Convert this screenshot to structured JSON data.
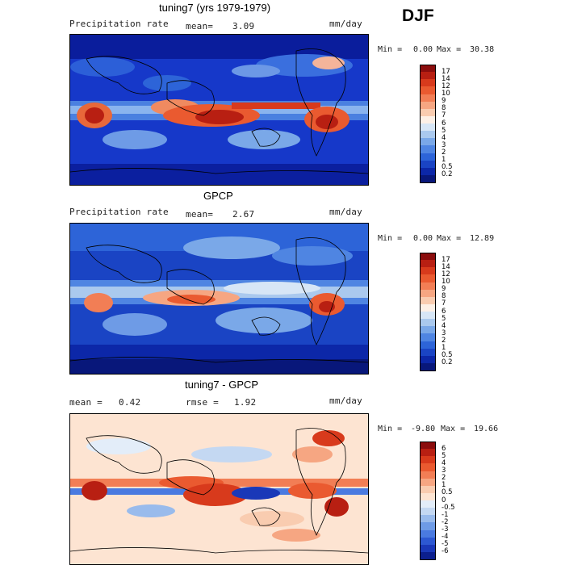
{
  "season": "DJF",
  "panels": [
    {
      "title": "tuning7 (yrs 1979-1979)",
      "left_label": "Precipitation rate",
      "stat1_label": "mean=",
      "stat1_value": "3.09",
      "stat2_label": "",
      "stat2_value": "",
      "units": "mm/day",
      "min_label": "Min =",
      "min_value": "0.00",
      "max_label": "Max =",
      "max_value": "30.38",
      "kind": "model"
    },
    {
      "title": "GPCP",
      "left_label": "Precipitation rate",
      "stat1_label": "mean=",
      "stat1_value": "2.67",
      "stat2_label": "",
      "stat2_value": "",
      "units": "mm/day",
      "min_label": "Min =",
      "min_value": "0.00",
      "max_label": "Max =",
      "max_value": "12.89",
      "kind": "obs"
    },
    {
      "title": "tuning7 - GPCP",
      "left_label": "",
      "stat1_label": "mean =",
      "stat1_value": "0.42",
      "stat2_label": "rmse =",
      "stat2_value": "1.92",
      "units": "mm/day",
      "min_label": "Min =",
      "min_value": "-9.80",
      "max_label": "Max =",
      "max_value": "19.66",
      "kind": "diff"
    }
  ],
  "colorbars": {
    "precip": {
      "labels": [
        "17",
        "14",
        "12",
        "10",
        "9",
        "8",
        "7",
        "6",
        "5",
        "4",
        "3",
        "2",
        "1",
        "0.5",
        "0.2"
      ],
      "colors": [
        "#8b0d0d",
        "#b81f12",
        "#d83a1c",
        "#ea5a30",
        "#f27e55",
        "#f6a682",
        "#f9ccb0",
        "#fdf0e6",
        "#d7e6f6",
        "#aac9ee",
        "#7aa8e8",
        "#4f85e2",
        "#2d64d8",
        "#1a44c4",
        "#0c27a8",
        "#08177a"
      ]
    },
    "diff": {
      "labels": [
        "6",
        "5",
        "4",
        "3",
        "2",
        "1",
        "0.5",
        "0",
        "-0.5",
        "-1",
        "-2",
        "-3",
        "-4",
        "-5",
        "-6"
      ],
      "colors": [
        "#8b0d0d",
        "#b81f12",
        "#d83a1c",
        "#ea5a30",
        "#f27e55",
        "#f6a682",
        "#f9ccb0",
        "#fde4d2",
        "#e3edf9",
        "#c4d8f2",
        "#99bbec",
        "#6e9be6",
        "#4a7ae0",
        "#2d58d2",
        "#1a38b8",
        "#0c1f8e"
      ]
    }
  },
  "chart_data": [
    {
      "type": "heatmap",
      "title": "tuning7 (yrs 1979-1979)",
      "units": "mm/day",
      "mean": 3.09,
      "min": 0.0,
      "max": 30.38,
      "levels": [
        0.2,
        0.5,
        1,
        2,
        3,
        4,
        5,
        6,
        7,
        8,
        9,
        10,
        12,
        14,
        17
      ]
    },
    {
      "type": "heatmap",
      "title": "GPCP",
      "units": "mm/day",
      "mean": 2.67,
      "min": 0.0,
      "max": 12.89,
      "levels": [
        0.2,
        0.5,
        1,
        2,
        3,
        4,
        5,
        6,
        7,
        8,
        9,
        10,
        12,
        14,
        17
      ]
    },
    {
      "type": "heatmap",
      "title": "tuning7 - GPCP",
      "units": "mm/day",
      "mean": 0.42,
      "rmse": 1.92,
      "min": -9.8,
      "max": 19.66,
      "levels": [
        -6,
        -5,
        -4,
        -3,
        -2,
        -1,
        -0.5,
        0,
        0.5,
        1,
        2,
        3,
        4,
        5,
        6
      ]
    }
  ]
}
